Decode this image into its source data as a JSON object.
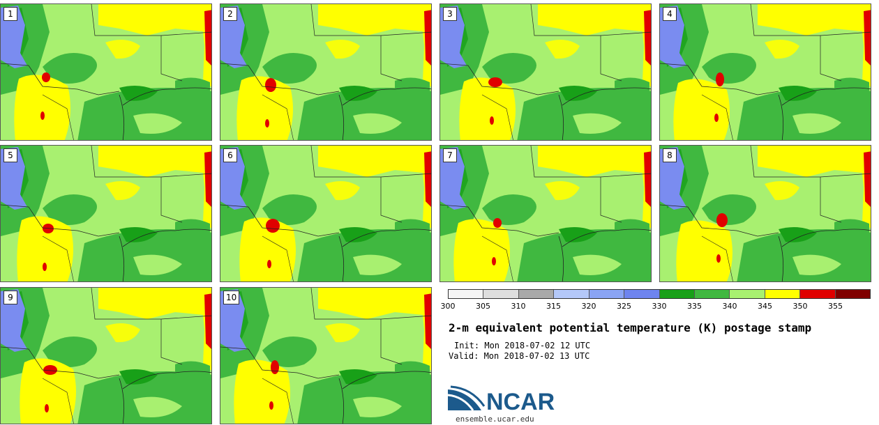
{
  "panels": [
    {
      "label": "1"
    },
    {
      "label": "2"
    },
    {
      "label": "3"
    },
    {
      "label": "4"
    },
    {
      "label": "5"
    },
    {
      "label": "6"
    },
    {
      "label": "7"
    },
    {
      "label": "8"
    },
    {
      "label": "9"
    },
    {
      "label": "10"
    }
  ],
  "colorbar": {
    "colors": [
      "#f5f5f5",
      "#dedede",
      "#a9a9a9",
      "#b4c8f8",
      "#8aa4f4",
      "#6e84ef",
      "#18a018",
      "#40b840",
      "#a8f070",
      "#ffff00",
      "#e00000",
      "#800000"
    ],
    "ticks": [
      "300",
      "305",
      "310",
      "315",
      "320",
      "325",
      "330",
      "335",
      "340",
      "345",
      "350",
      "355"
    ]
  },
  "title": "2-m equivalent potential temperature (K) postage stamp",
  "init": "Init: Mon 2018-07-02 12 UTC",
  "valid": "Valid: Mon 2018-07-02 13 UTC",
  "logo": {
    "text": "NCAR",
    "url": "ensemble.ucar.edu"
  },
  "map_colors": {
    "background": "#a8f070",
    "dark_green": "#18a018",
    "mid_green": "#40b840",
    "yellow": "#ffff00",
    "red": "#e00000",
    "blue": "#7a8cf0"
  }
}
